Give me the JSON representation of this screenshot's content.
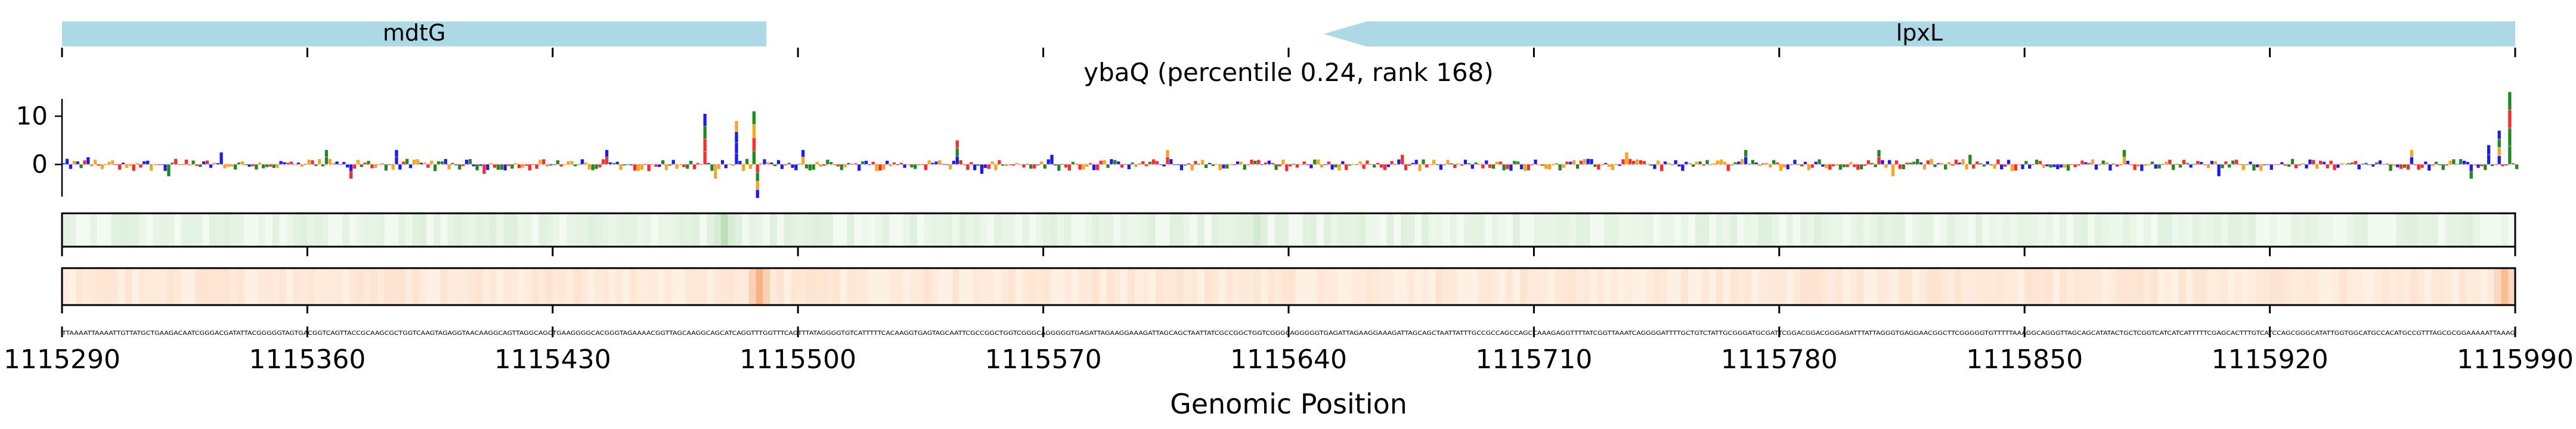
{
  "chart_data": {
    "type": "genome-track",
    "title": "ybaQ (percentile 0.24, rank 168)",
    "xlabel": "Genomic Position",
    "xlim": [
      1115290,
      1115990
    ],
    "x_ticks": [
      1115290,
      1115360,
      1115430,
      1115500,
      1115570,
      1115640,
      1115710,
      1115780,
      1115850,
      1115920,
      1115990
    ],
    "x_tick_labels": [
      "1115290",
      "1115360",
      "1115430",
      "1115500",
      "1115570",
      "1115640",
      "1115710",
      "1115780",
      "1115850",
      "1115920",
      "1115990"
    ],
    "genes": [
      {
        "name": "mdtG",
        "start": 1115290,
        "end": 1115491,
        "strand": "-"
      },
      {
        "name": "lpxL",
        "start": 1115650,
        "end": 1115990,
        "strand": "-"
      }
    ],
    "logo_track": {
      "ylim": [
        -9,
        15
      ],
      "y_ticks": [
        0,
        10
      ],
      "y_tick_labels": [
        "0",
        "10"
      ],
      "peaks": [
        {
          "x": 1115297,
          "value": 1.5
        },
        {
          "x": 1115320,
          "value": -2.5
        },
        {
          "x": 1115335,
          "value": 2.5
        },
        {
          "x": 1115365,
          "value": 3.0
        },
        {
          "x": 1115372,
          "value": -3.0
        },
        {
          "x": 1115385,
          "value": 3.0
        },
        {
          "x": 1115410,
          "value": -2.0
        },
        {
          "x": 1115445,
          "value": 3.0
        },
        {
          "x": 1115473,
          "value": 10.5
        },
        {
          "x": 1115476,
          "value": -3.0
        },
        {
          "x": 1115482,
          "value": 9.0
        },
        {
          "x": 1115487,
          "value": 11.0
        },
        {
          "x": 1115488,
          "value": -7.0
        },
        {
          "x": 1115501,
          "value": 3.0
        },
        {
          "x": 1115545,
          "value": 5.0
        },
        {
          "x": 1115552,
          "value": -2.0
        },
        {
          "x": 1115572,
          "value": 2.0
        },
        {
          "x": 1115605,
          "value": 3.0
        },
        {
          "x": 1115672,
          "value": 2.0
        },
        {
          "x": 1115736,
          "value": 2.5
        },
        {
          "x": 1115770,
          "value": 3.0
        },
        {
          "x": 1115808,
          "value": 3.0
        },
        {
          "x": 1115812,
          "value": -2.5
        },
        {
          "x": 1115834,
          "value": 2.0
        },
        {
          "x": 1115878,
          "value": 3.0
        },
        {
          "x": 1115905,
          "value": -2.5
        },
        {
          "x": 1115960,
          "value": 3.0
        },
        {
          "x": 1115977,
          "value": -3.0
        },
        {
          "x": 1115982,
          "value": 4.0
        },
        {
          "x": 1115985,
          "value": 7.0
        },
        {
          "x": 1115988,
          "value": 15.0
        }
      ]
    },
    "heatmap_tracks": [
      {
        "colormap": "greens",
        "hotspots": [
          {
            "x": 1115478,
            "intensity": 0.35
          },
          {
            "x": 1115630,
            "intensity": 0.2
          }
        ]
      },
      {
        "colormap": "oranges",
        "hotspots": [
          {
            "x": 1115488,
            "intensity": 0.6
          },
          {
            "x": 1115986,
            "intensity": 0.5
          }
        ]
      }
    ],
    "sequence_row": "TTAAAATTAAAATTGTTATGCTGAAGACAATCGGGACGATATTACGGGGGTAGTGACGGTCAGTTACCGCAAGCGCTGGTCAAGTAGAGGTAACAAGGCAGTTAGGCAGCTGAAGGGGCACGGGTAGAAAACGGTTAGCAAGGCAGCATCAGGTTTGGTTTCAGTTTATAGGGGTGTCATTTTTCACAAGGTGAGTAGCAATTCGCCGGCTGGTCGGGCAGGGGGTGAGATTAGAAGGAAAGATTAGCAGCTAATTATCGCCGGCTGGTCGGGCAGGGGGTGAGATTAGAAGGAAAGATTAGCAGCTAATTATTTGCCGCCAGCCAGCCAAAGAGGTTTTATCGGTTAAATCAGGGGATTTTGCTGTCTATTGCGGGATGCGATTCGGACGGACGGGAGATTTATTAGGGTGAGGAACGGCTTCGGGGGTGTTTTTAAAGGCAGGGTTAGCAGCATATACTGCTCGGTCATCATCATTTTTCGAGCACTTTGTCATCCAGCGGGCATATTGGTGGCATGCCACATGCCGTTTAGCGCGGAAAAATTAAAG"
  }
}
